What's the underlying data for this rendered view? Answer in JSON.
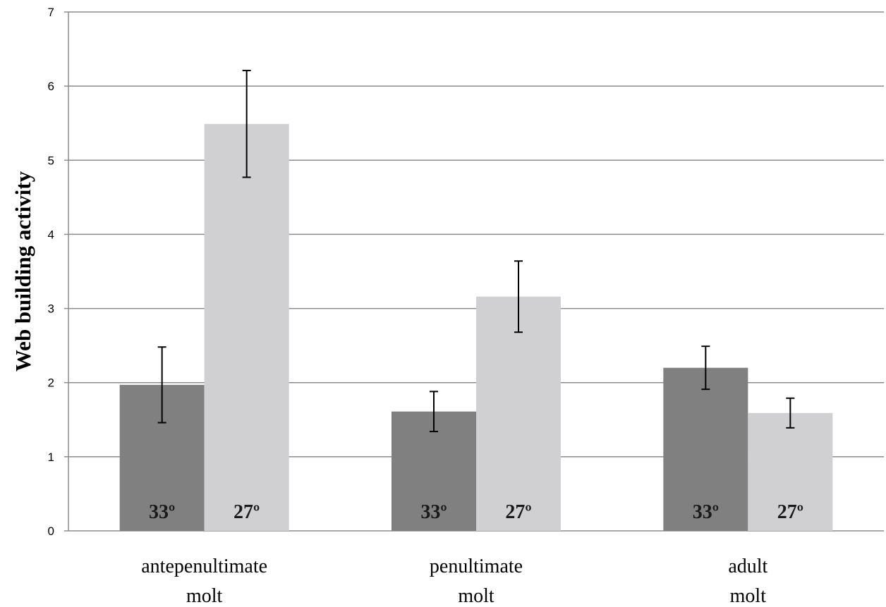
{
  "chart_data": {
    "type": "bar",
    "ylabel": "Web building activity",
    "xlabel": "",
    "ylim": [
      0,
      7
    ],
    "yticks": [
      0,
      1,
      2,
      3,
      4,
      5,
      6,
      7
    ],
    "grid": true,
    "categories": [
      [
        "antepenultimate",
        "molt"
      ],
      [
        "penultimate",
        "molt"
      ],
      [
        "adult",
        "molt"
      ]
    ],
    "series": [
      {
        "label": "33º",
        "color": "#808080",
        "values": [
          1.97,
          1.61,
          2.2
        ],
        "error": [
          0.51,
          0.27,
          0.29
        ]
      },
      {
        "label": "27º",
        "color": "#d0cfd1",
        "values": [
          5.49,
          3.16,
          1.59
        ],
        "error": [
          0.72,
          0.48,
          0.2
        ]
      }
    ]
  }
}
